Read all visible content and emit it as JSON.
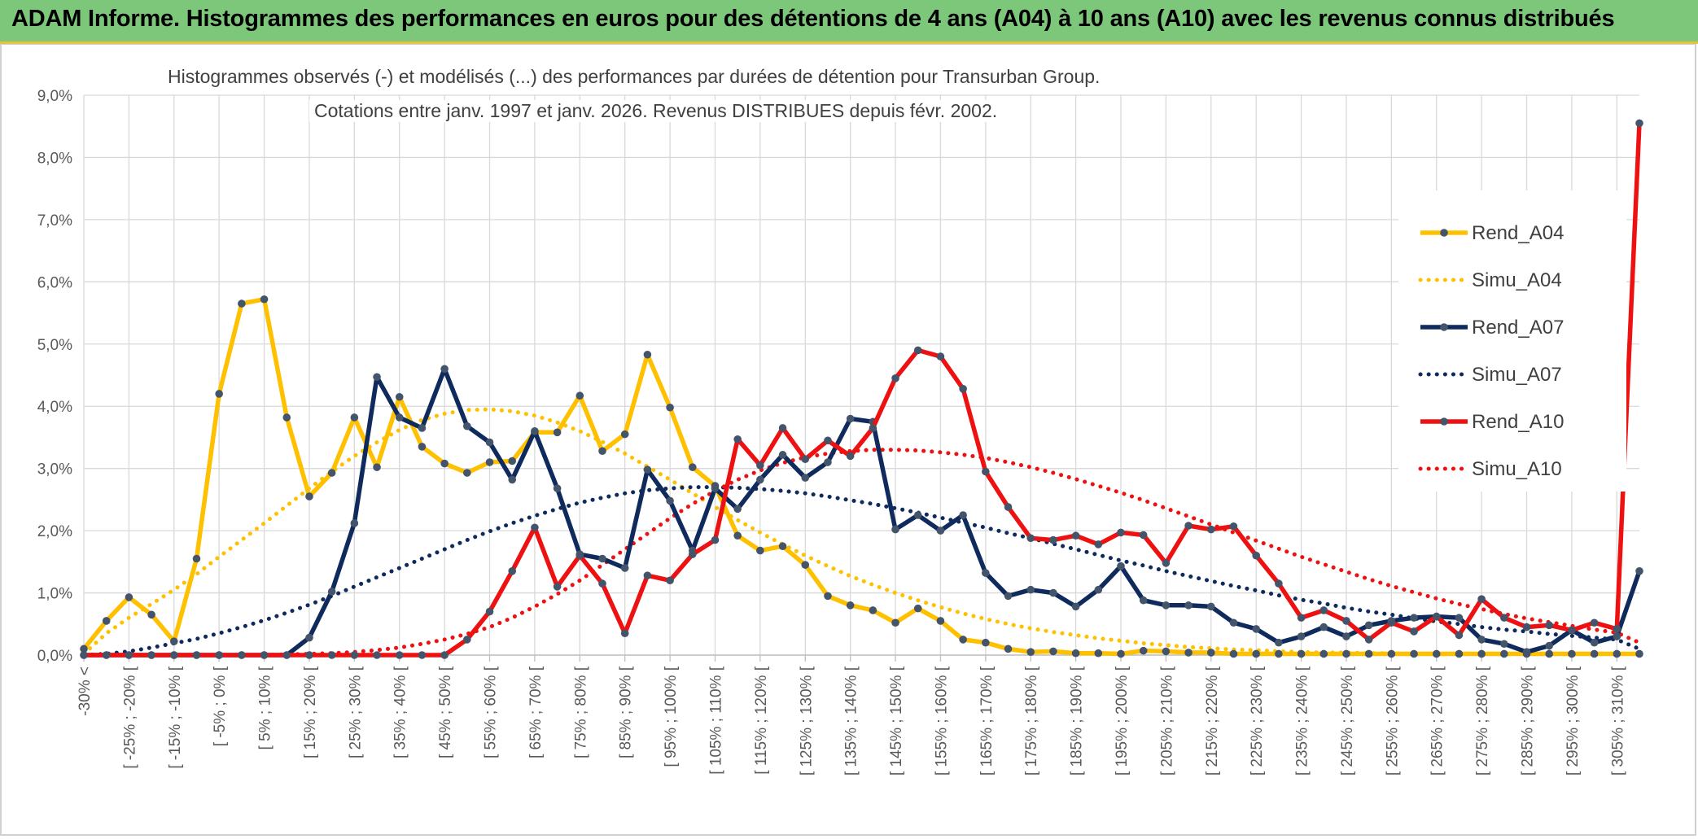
{
  "header": {
    "title": "ADAM Informe. Histogrammes des performances en euros pour des détentions de 4 ans (A04) à 10 ans (A10) avec les revenus connus distribués"
  },
  "chart_data": {
    "type": "line",
    "title_line1": "Histogrammes observés (-) et modélisés (...) des performances par durées de détention pour Transurban Group.",
    "title_line2": "Cotations entre janv. 1997 et janv. 2026. Revenus DISTRIBUES depuis févr. 2002.",
    "ylim": [
      0,
      9
    ],
    "yticks": [
      "0,0%",
      "1,0%",
      "2,0%",
      "3,0%",
      "4,0%",
      "5,0%",
      "6,0%",
      "7,0%",
      "8,0%",
      "9,0%"
    ],
    "xtick_labels": [
      "-30% <",
      "[ -25% ; -20% [",
      "[ -15% ; -10% [",
      "[ -5% ; 0% [",
      "[ 5% ; 10% [",
      "[ 15% ; 20% [",
      "[ 25% ; 30% [",
      "[ 35% ; 40% [",
      "[ 45% ; 50% [",
      "[ 55% ; 60% [",
      "[ 65% ; 70% [",
      "[ 75% ; 80% [",
      "[ 85% ; 90% [",
      "[ 95% ; 100% [",
      "[ 105% ; 110% [",
      "[ 115% ; 120% [",
      "[ 125% ; 130% [",
      "[ 135% ; 140% [",
      "[ 145% ; 150% [",
      "[ 155% ; 160% [",
      "[ 165% ; 170% [",
      "[ 175% ; 180% [",
      "[ 185% ; 190% [",
      "[ 195% ; 200% [",
      "[ 205% ; 210% [",
      "[ 215% ; 220% [",
      "[ 225% ; 230% [",
      "[ 235% ; 240% [",
      "[ 245% ; 250% [",
      "[ 255% ; 260% [",
      "[ 265% ; 270% [",
      "[ 275% ; 280% [",
      "[ 285% ; 290% [",
      "[ 295% ; 300% [",
      "[ 305% ; 310% ["
    ],
    "n_categories": 70,
    "grid": true,
    "legend_position": "right",
    "series": [
      {
        "name": "Rend_A04",
        "style": "solid",
        "color": "#ffc000",
        "values": [
          0.1,
          0.55,
          0.93,
          0.65,
          0.22,
          1.55,
          4.2,
          5.65,
          5.72,
          3.82,
          2.55,
          2.93,
          3.82,
          3.02,
          4.15,
          3.35,
          3.08,
          2.93,
          3.1,
          3.12,
          3.58,
          3.58,
          4.17,
          3.28,
          3.55,
          4.83,
          3.98,
          3.02,
          2.72,
          1.92,
          1.68,
          1.75,
          1.45,
          0.95,
          0.8,
          0.72,
          0.52,
          0.75,
          0.55,
          0.25,
          0.2,
          0.1,
          0.05,
          0.06,
          0.03,
          0.03,
          0.02,
          0.07,
          0.06,
          0.04,
          0.04,
          0.02,
          0.02,
          0.02,
          0.02,
          0.02,
          0.02,
          0.02,
          0.02,
          0.02,
          0.02,
          0.02,
          0.02,
          0.02,
          0.02,
          0.02,
          0.02,
          0.02,
          0.02,
          0.02
        ]
      },
      {
        "name": "Simu_A04",
        "style": "dotted",
        "color": "#ffc000",
        "values": [
          0.02,
          0.35,
          0.6,
          0.82,
          1.05,
          1.3,
          1.58,
          1.85,
          2.12,
          2.4,
          2.68,
          2.95,
          3.2,
          3.42,
          3.62,
          3.78,
          3.88,
          3.94,
          3.95,
          3.92,
          3.85,
          3.74,
          3.6,
          3.43,
          3.24,
          3.03,
          2.82,
          2.6,
          2.38,
          2.17,
          1.97,
          1.78,
          1.6,
          1.43,
          1.27,
          1.13,
          1.0,
          0.88,
          0.77,
          0.67,
          0.58,
          0.5,
          0.43,
          0.37,
          0.32,
          0.27,
          0.23,
          0.19,
          0.16,
          0.13,
          0.11,
          0.09,
          0.08,
          0.06,
          0.05,
          0.04,
          0.04,
          0.03,
          0.03,
          0.02,
          0.02,
          0.02,
          0.02,
          0.02,
          0.02,
          0.02,
          0.02,
          0.02,
          0.02,
          0.02
        ]
      },
      {
        "name": "Rend_A07",
        "style": "solid",
        "color": "#0f2a5c",
        "values": [
          0,
          0,
          0,
          0,
          0,
          0,
          0,
          0,
          0,
          0,
          0.28,
          1.02,
          2.12,
          4.47,
          3.82,
          3.65,
          4.6,
          3.68,
          3.42,
          2.82,
          3.6,
          2.68,
          1.62,
          1.55,
          1.4,
          2.98,
          2.48,
          1.68,
          2.68,
          2.35,
          2.82,
          3.22,
          2.85,
          3.1,
          3.8,
          3.75,
          2.02,
          2.25,
          2.0,
          2.25,
          1.32,
          0.95,
          1.05,
          1.0,
          0.78,
          1.05,
          1.43,
          0.88,
          0.8,
          0.8,
          0.78,
          0.52,
          0.42,
          0.2,
          0.3,
          0.45,
          0.3,
          0.48,
          0.55,
          0.6,
          0.62,
          0.6,
          0.25,
          0.18,
          0.05,
          0.15,
          0.4,
          0.2,
          0.3,
          1.35
        ]
      },
      {
        "name": "Simu_A07",
        "style": "dotted",
        "color": "#0f2a5c",
        "values": [
          0,
          0.02,
          0.06,
          0.12,
          0.19,
          0.26,
          0.35,
          0.45,
          0.56,
          0.68,
          0.81,
          0.95,
          1.1,
          1.25,
          1.4,
          1.55,
          1.7,
          1.85,
          1.99,
          2.12,
          2.24,
          2.35,
          2.45,
          2.53,
          2.6,
          2.65,
          2.68,
          2.7,
          2.7,
          2.69,
          2.67,
          2.64,
          2.6,
          2.55,
          2.49,
          2.43,
          2.36,
          2.29,
          2.21,
          2.13,
          2.05,
          1.96,
          1.88,
          1.79,
          1.7,
          1.61,
          1.52,
          1.44,
          1.35,
          1.27,
          1.19,
          1.11,
          1.04,
          0.96,
          0.89,
          0.83,
          0.76,
          0.7,
          0.65,
          0.59,
          0.54,
          0.5,
          0.45,
          0.41,
          0.38,
          0.34,
          0.31,
          0.28,
          0.25,
          0.1
        ]
      },
      {
        "name": "Rend_A10",
        "style": "solid",
        "color": "#ee1111",
        "values": [
          0,
          0,
          0,
          0,
          0,
          0,
          0,
          0,
          0,
          0,
          0,
          0,
          0,
          0,
          0,
          0,
          0,
          0.25,
          0.7,
          1.35,
          2.05,
          1.1,
          1.6,
          1.15,
          0.35,
          1.28,
          1.2,
          1.62,
          1.85,
          3.47,
          3.05,
          3.65,
          3.15,
          3.45,
          3.2,
          3.65,
          4.45,
          4.9,
          4.8,
          4.28,
          2.95,
          2.38,
          1.88,
          1.85,
          1.92,
          1.78,
          1.97,
          1.93,
          1.48,
          2.08,
          2.02,
          2.07,
          1.6,
          1.15,
          0.6,
          0.72,
          0.55,
          0.25,
          0.52,
          0.38,
          0.62,
          0.32,
          0.9,
          0.6,
          0.45,
          0.48,
          0.4,
          0.52,
          0.42,
          8.55
        ]
      },
      {
        "name": "Simu_A10",
        "style": "dotted",
        "color": "#ee1111",
        "values": [
          0,
          0,
          0,
          0,
          0,
          0,
          0,
          0,
          0,
          0.01,
          0.02,
          0.03,
          0.05,
          0.08,
          0.12,
          0.18,
          0.25,
          0.34,
          0.45,
          0.6,
          0.78,
          0.98,
          1.2,
          1.45,
          1.7,
          1.95,
          2.2,
          2.43,
          2.64,
          2.82,
          2.97,
          3.09,
          3.18,
          3.24,
          3.28,
          3.3,
          3.3,
          3.29,
          3.26,
          3.22,
          3.17,
          3.1,
          3.02,
          2.93,
          2.83,
          2.72,
          2.61,
          2.49,
          2.36,
          2.23,
          2.1,
          1.97,
          1.84,
          1.71,
          1.58,
          1.46,
          1.34,
          1.22,
          1.11,
          1.01,
          0.91,
          0.82,
          0.74,
          0.66,
          0.59,
          0.53,
          0.47,
          0.41,
          0.36,
          0.2
        ]
      }
    ]
  }
}
